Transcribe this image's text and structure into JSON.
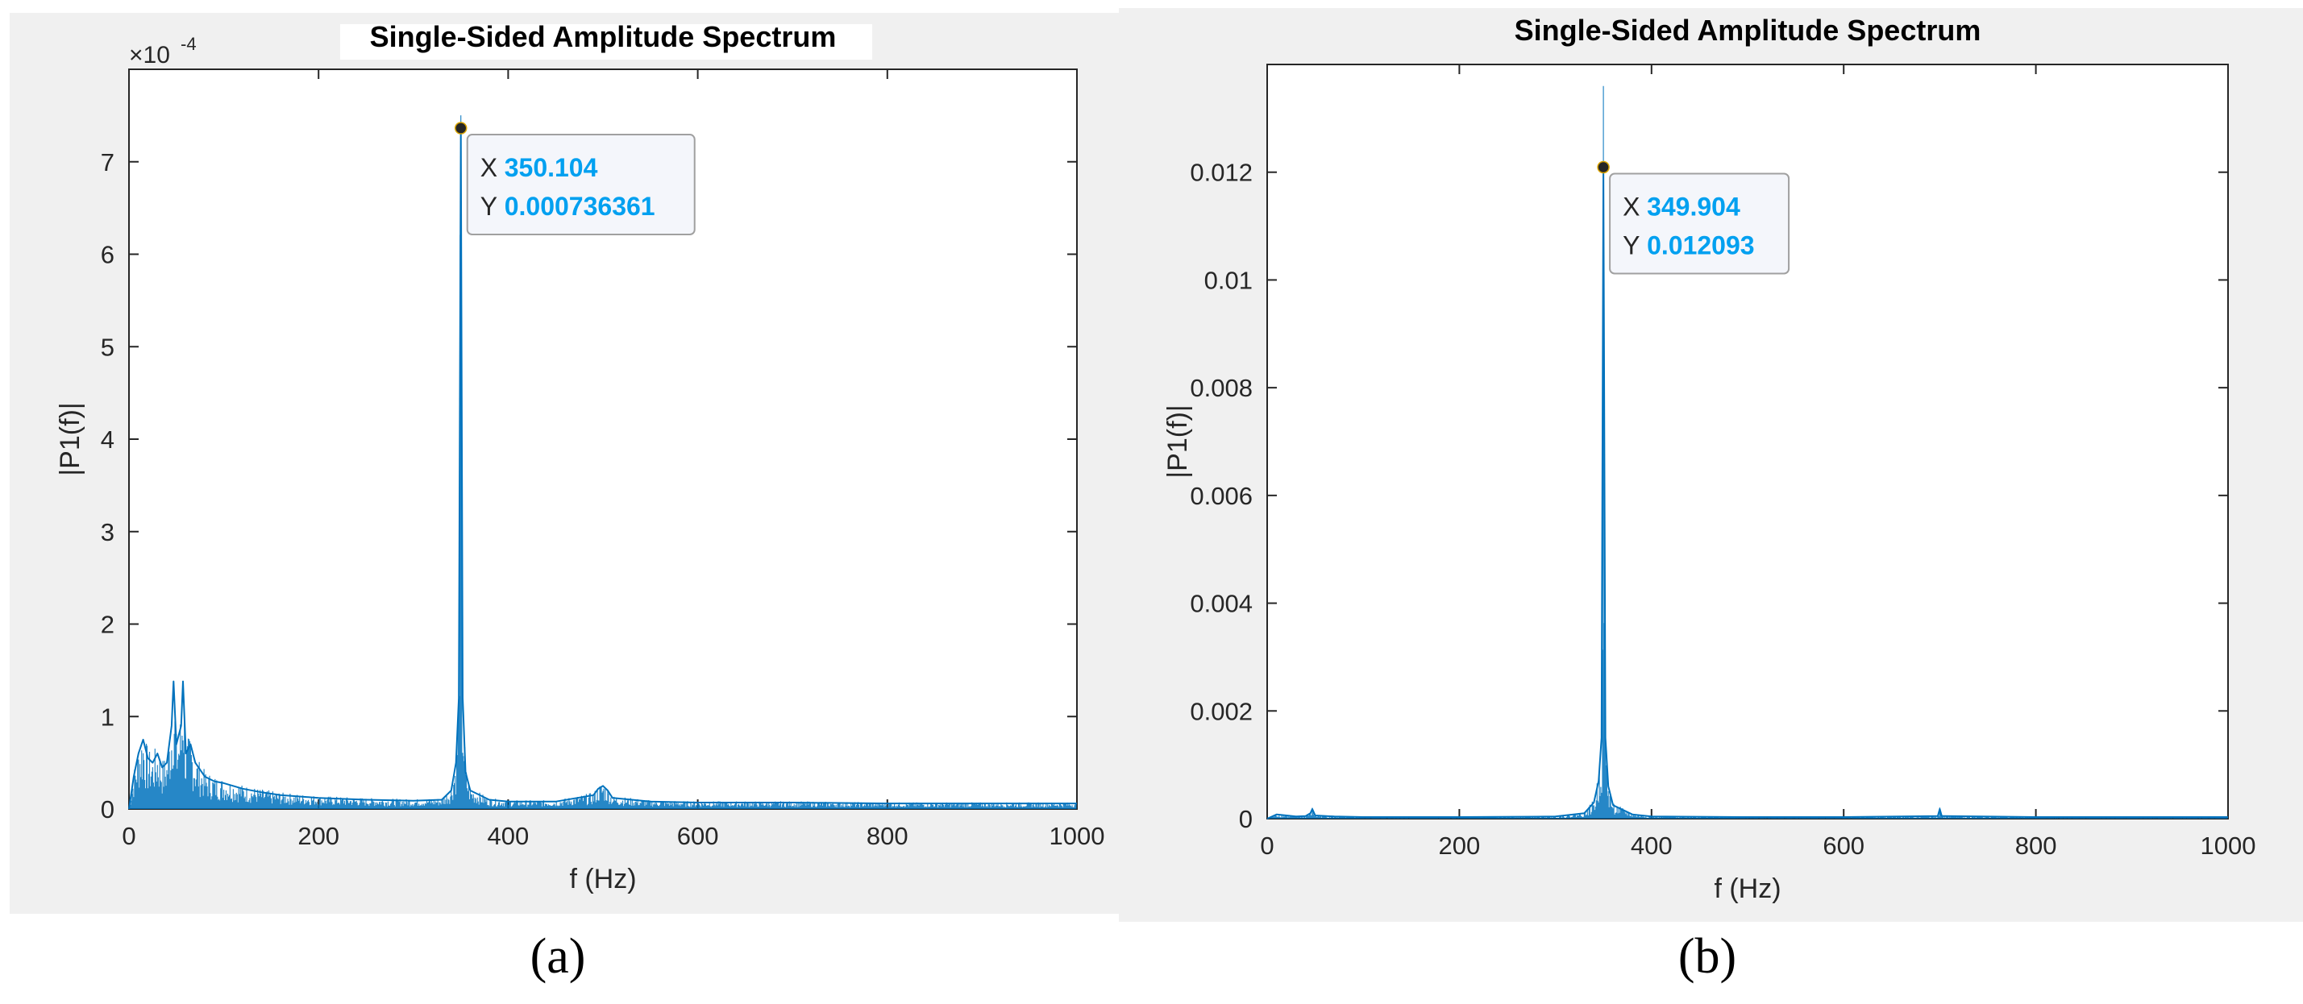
{
  "charts": [
    {
      "type": "line",
      "title": "Single-Sided Amplitude Spectrum",
      "xlabel": "f (Hz)",
      "ylabel": "|P1(f)|",
      "y_exponent_label": "×10",
      "y_exponent_power": "-4",
      "xlim": [
        0,
        1000
      ],
      "ylim": [
        0,
        8
      ],
      "xticks": [
        "0",
        "200",
        "400",
        "600",
        "800",
        "1000"
      ],
      "yticks": [
        "0",
        "1",
        "2",
        "3",
        "4",
        "5",
        "6",
        "7"
      ],
      "ytick_values": [
        0,
        1,
        2,
        3,
        4,
        5,
        6,
        7
      ],
      "xtick_values": [
        0,
        200,
        400,
        600,
        800,
        1000
      ],
      "line_color": "#0072bd",
      "datatip": {
        "x_label": "X",
        "x_value": "350.104",
        "y_label": "Y",
        "y_value": "0.000736361"
      },
      "panel_label": "(a)"
    },
    {
      "type": "line",
      "title": "Single-Sided Amplitude Spectrum",
      "xlabel": "f (Hz)",
      "ylabel": "|P1(f)|",
      "xlim": [
        0,
        1000
      ],
      "ylim": [
        0,
        0.014
      ],
      "xticks": [
        "0",
        "200",
        "400",
        "600",
        "800",
        "1000"
      ],
      "yticks": [
        "0",
        "0.002",
        "0.004",
        "0.006",
        "0.008",
        "0.01",
        "0.012"
      ],
      "ytick_values": [
        0,
        0.002,
        0.004,
        0.006,
        0.008,
        0.01,
        0.012
      ],
      "xtick_values": [
        0,
        200,
        400,
        600,
        800,
        1000
      ],
      "line_color": "#0072bd",
      "datatip": {
        "x_label": "X",
        "x_value": "349.904",
        "y_label": "Y",
        "y_value": "0.012093"
      },
      "panel_label": "(b)"
    }
  ],
  "chart_data": [
    {
      "type": "line",
      "title": "Single-Sided Amplitude Spectrum",
      "xlabel": "f (Hz)",
      "ylabel": "|P1(f)|",
      "y_scale_factor": "1e-4",
      "xlim": [
        0,
        1000
      ],
      "ylim": [
        0,
        8
      ],
      "grid": false,
      "series": [
        {
          "x": [
            0,
            5,
            10,
            15,
            20,
            25,
            30,
            35,
            40,
            45,
            47,
            50,
            55,
            57,
            60,
            65,
            70,
            80,
            90,
            100,
            120,
            140,
            160,
            200,
            250,
            300,
            330,
            340,
            345,
            348,
            350.104,
            352,
            355,
            360,
            380,
            400,
            450,
            490,
            495,
            500,
            505,
            510,
            550,
            600,
            700,
            800,
            900,
            1000
          ],
          "y": [
            0,
            0.35,
            0.6,
            0.75,
            0.55,
            0.5,
            0.6,
            0.45,
            0.5,
            0.9,
            1.38,
            0.7,
            0.9,
            1.38,
            0.6,
            0.7,
            0.5,
            0.35,
            0.3,
            0.28,
            0.22,
            0.18,
            0.15,
            0.12,
            0.1,
            0.09,
            0.1,
            0.2,
            0.5,
            1.2,
            7.36361,
            1.2,
            0.4,
            0.2,
            0.1,
            0.08,
            0.08,
            0.15,
            0.22,
            0.25,
            0.2,
            0.12,
            0.08,
            0.07,
            0.07,
            0.06,
            0.06,
            0.06
          ]
        }
      ],
      "annotation": {
        "x": 350.104,
        "y": 0.000736361
      }
    },
    {
      "type": "line",
      "title": "Single-Sided Amplitude Spectrum",
      "xlabel": "f (Hz)",
      "ylabel": "|P1(f)|",
      "xlim": [
        0,
        1000
      ],
      "ylim": [
        0,
        0.014
      ],
      "grid": false,
      "series": [
        {
          "x": [
            0,
            10,
            20,
            30,
            40,
            45,
            47,
            50,
            70,
            100,
            200,
            300,
            330,
            340,
            345,
            348,
            349.904,
            352,
            355,
            360,
            380,
            400,
            500,
            600,
            698,
            700,
            702,
            800,
            900,
            1000
          ],
          "y": [
            0,
            8e-05,
            6e-05,
            4e-05,
            5e-05,
            0.0001,
            0.00018,
            6e-05,
            4e-05,
            3e-05,
            3e-05,
            4e-05,
            0.0001,
            0.0003,
            0.0007,
            0.0015,
            0.012093,
            0.0015,
            0.0006,
            0.00025,
            8e-05,
            4e-05,
            3e-05,
            3e-05,
            5e-05,
            0.00018,
            5e-05,
            3e-05,
            3e-05,
            3e-05
          ]
        }
      ],
      "annotation": {
        "x": 349.904,
        "y": 0.012093
      }
    }
  ]
}
